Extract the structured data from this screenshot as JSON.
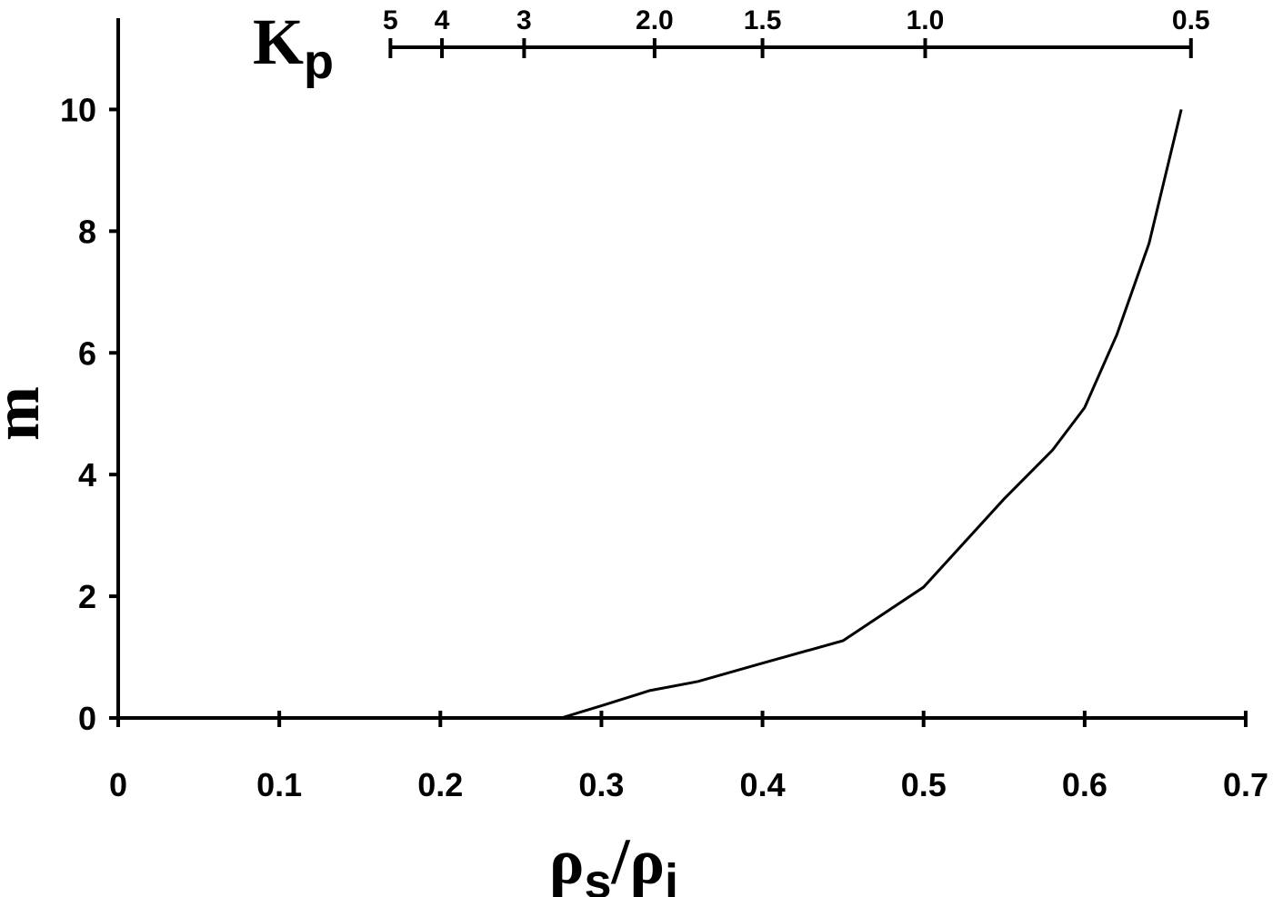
{
  "chart_data": {
    "type": "line",
    "x_label": "ρs/ρi",
    "y_label": "m",
    "x2_label": "Kp",
    "series": [
      {
        "name": "m",
        "color": "#000000",
        "x": [
          0.275,
          0.3,
          0.33,
          0.36,
          0.4,
          0.45,
          0.5,
          0.55,
          0.58,
          0.6,
          0.62,
          0.64,
          0.66
        ],
        "values": [
          0,
          0.2,
          0.45,
          0.6,
          0.9,
          1.27,
          2.15,
          3.6,
          4.4,
          5.1,
          6.3,
          7.8,
          10
        ]
      }
    ],
    "xlim": [
      0,
      0.7
    ],
    "xticks": [
      0,
      0.1,
      0.2,
      0.3,
      0.4,
      0.5,
      0.6,
      0.7
    ],
    "ylim": [
      0,
      11.5
    ],
    "yticks": [
      0,
      2,
      4,
      6,
      8,
      10
    ],
    "x2ticks": [
      {
        "value": 5,
        "label": "5",
        "x": 0.169
      },
      {
        "value": 4,
        "label": "4",
        "x": 0.201
      },
      {
        "value": 3,
        "label": "3",
        "x": 0.252
      },
      {
        "value": 2,
        "label": "2.0",
        "x": 0.333
      },
      {
        "value": 1.5,
        "label": "1.5",
        "x": 0.4
      },
      {
        "value": 1,
        "label": "1.0",
        "x": 0.501
      },
      {
        "value": 0.5,
        "label": "0.5",
        "x": 0.666
      }
    ]
  }
}
